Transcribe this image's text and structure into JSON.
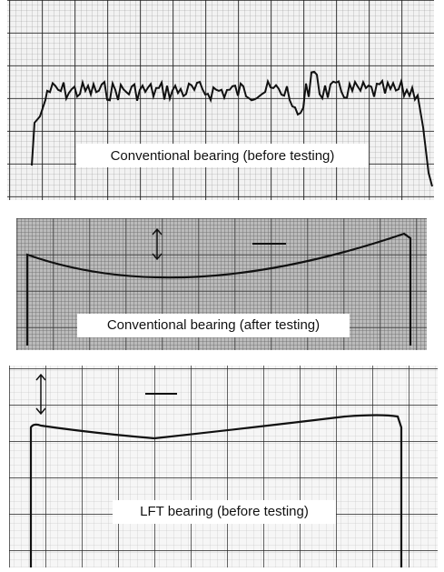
{
  "panels": [
    {
      "label": "Conventional bearing (before testing)"
    },
    {
      "label": "Conventional bearing (after testing)"
    },
    {
      "label": "LFT bearing (before testing)"
    }
  ]
}
